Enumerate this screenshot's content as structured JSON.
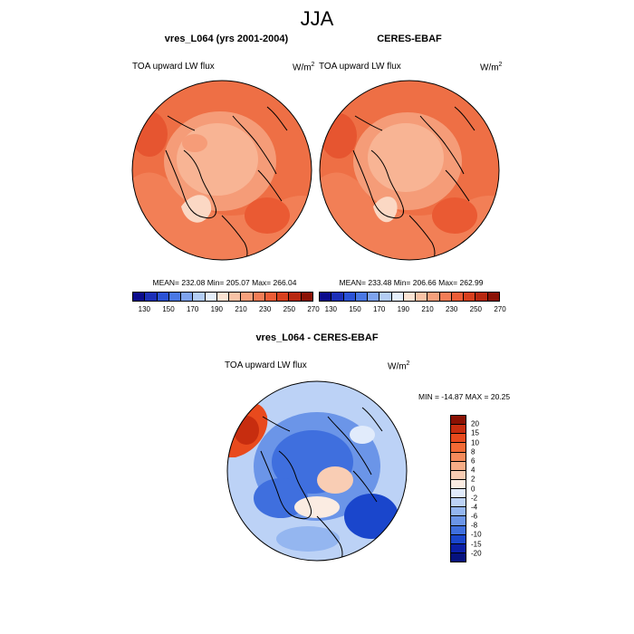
{
  "figure": {
    "season": "JJA"
  },
  "panels": [
    {
      "title": "vres_L064 (yrs 2001-2004)",
      "variable": "TOA upward LW flux",
      "unit_base": "W/m",
      "unit_exp": "2",
      "stats": "MEAN= 232.08  Min= 205.07  Max= 266.04"
    },
    {
      "title": "CERES-EBAF",
      "variable": "TOA upward LW flux",
      "unit_base": "W/m",
      "unit_exp": "2",
      "stats": "MEAN= 233.48  Min= 206.66  Max= 262.99"
    },
    {
      "title": "vres_L064 - CERES-EBAF",
      "variable": "TOA upward LW flux",
      "unit_base": "W/m",
      "unit_exp": "2",
      "stats": "MIN = -14.87 MAX =  20.25"
    }
  ],
  "colorbars": {
    "absolute": {
      "tick_labels": [
        "130",
        "150",
        "170",
        "190",
        "210",
        "230",
        "250",
        "270"
      ],
      "colors": [
        "#0b0b8c",
        "#1c2fb8",
        "#2b52d6",
        "#4a78e4",
        "#7ea3ee",
        "#b3cdf5",
        "#e4eefa",
        "#fbe3d3",
        "#f9c3a6",
        "#f6a07c",
        "#f27d56",
        "#ec5c36",
        "#d8401e",
        "#b82810",
        "#8c1306"
      ]
    },
    "difference": {
      "tick_labels": [
        "20",
        "15",
        "10",
        "8",
        "6",
        "4",
        "2",
        "0",
        "-2",
        "-4",
        "-6",
        "-8",
        "-10",
        "-15",
        "-20"
      ],
      "colors": [
        "#8a1103",
        "#c72d0f",
        "#e84a1d",
        "#f26a35",
        "#f58b5b",
        "#f7ad86",
        "#f9cdb4",
        "#fbece2",
        "#e1ebfb",
        "#bcd2f6",
        "#94b6f0",
        "#6b95e8",
        "#3f6fde",
        "#1a46cc",
        "#0b1fa6",
        "#06127f"
      ]
    }
  },
  "chart_data": [
    {
      "type": "map",
      "projection": "north-polar-stereographic",
      "title": "vres_L064 (yrs 2001-2004)",
      "field": "TOA upward LW flux",
      "units": "W/m2",
      "mean": 232.08,
      "min": 205.07,
      "max": 266.04,
      "levels": [
        130,
        140,
        150,
        160,
        170,
        180,
        190,
        200,
        210,
        220,
        230,
        240,
        250,
        260,
        270
      ]
    },
    {
      "type": "map",
      "projection": "north-polar-stereographic",
      "title": "CERES-EBAF",
      "field": "TOA upward LW flux",
      "units": "W/m2",
      "mean": 233.48,
      "min": 206.66,
      "max": 262.99,
      "levels": [
        130,
        140,
        150,
        160,
        170,
        180,
        190,
        200,
        210,
        220,
        230,
        240,
        250,
        260,
        270
      ]
    },
    {
      "type": "map",
      "projection": "north-polar-stereographic",
      "title": "vres_L064 - CERES-EBAF",
      "field": "TOA upward LW flux",
      "units": "W/m2",
      "min": -14.87,
      "max": 20.25,
      "levels": [
        -20,
        -15,
        -10,
        -8,
        -6,
        -4,
        -2,
        0,
        2,
        4,
        6,
        8,
        10,
        15,
        20
      ]
    }
  ]
}
